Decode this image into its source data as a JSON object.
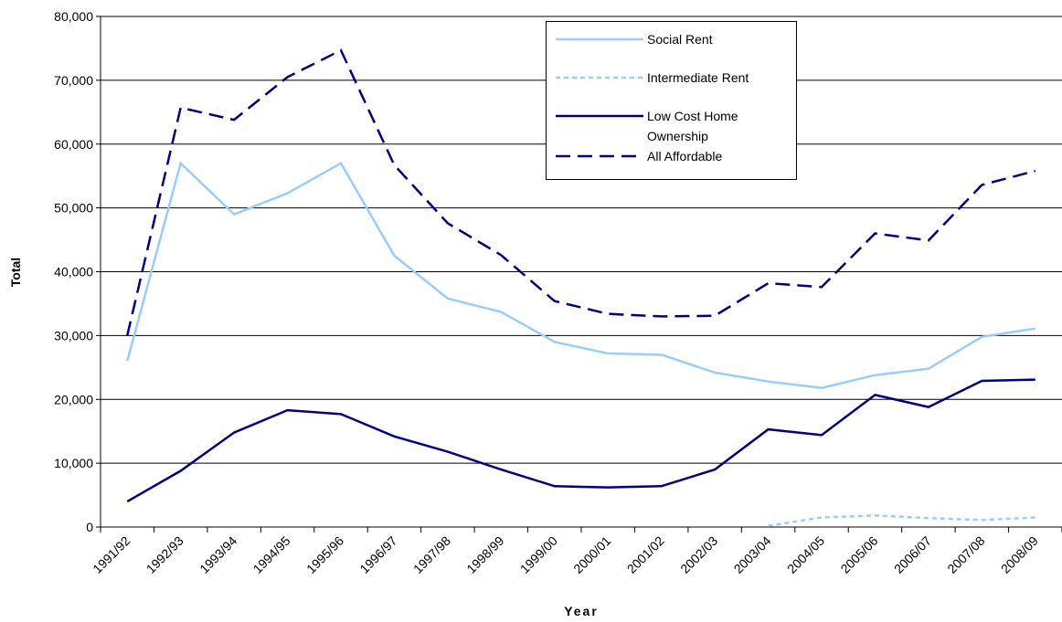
{
  "chart_data": {
    "type": "line",
    "x_label": "Year",
    "y_label": "Total",
    "categories": [
      "1991/92",
      "1992/93",
      "1993/94",
      "1994/95",
      "1995/96",
      "1996/97",
      "1997/98",
      "1998/99",
      "1999/00",
      "2000/01",
      "2001/02",
      "2002/03",
      "2003/04",
      "2004/05",
      "2005/06",
      "2006/07",
      "2007/08",
      "2008/09"
    ],
    "series": [
      {
        "name": "Social Rent",
        "color": "#99ccff",
        "dash": "solid",
        "values": [
          26000,
          57000,
          49000,
          52300,
          57000,
          42500,
          35800,
          33700,
          29000,
          27200,
          27000,
          24200,
          22800,
          21800,
          23800,
          24800,
          29800,
          31100
        ]
      },
      {
        "name": "Intermediate Rent",
        "color": "#99ccff",
        "dash": "dotted",
        "values": [
          null,
          null,
          null,
          null,
          null,
          null,
          null,
          null,
          null,
          null,
          null,
          null,
          200,
          1500,
          1800,
          1400,
          1100,
          1500
        ]
      },
      {
        "name": "Low Cost Home Ownership",
        "color": "#000080",
        "dash": "solid",
        "values": [
          4000,
          8800,
          14800,
          18300,
          17700,
          14200,
          11800,
          9000,
          6400,
          6200,
          6400,
          9000,
          15300,
          14400,
          20700,
          18800,
          22900,
          23100
        ]
      },
      {
        "name": "All Affordable",
        "color": "#000080",
        "dash": "dashed",
        "values": [
          30000,
          65700,
          63800,
          70500,
          74700,
          56700,
          47600,
          42600,
          35400,
          33400,
          33000,
          33100,
          38200,
          37600,
          46000,
          44900,
          53600,
          55800
        ]
      }
    ],
    "ylim": [
      0,
      80000
    ],
    "yticks": [
      0,
      {
        "value": 10000,
        "label": "10,000"
      },
      {
        "value": 20000,
        "label": "20,000"
      },
      {
        "value": 30000,
        "label": "30,000"
      },
      {
        "value": 40000,
        "label": "40,000"
      },
      {
        "value": 50000,
        "label": "50,000"
      },
      {
        "value": 60000,
        "label": "60,000"
      },
      {
        "value": 70000,
        "label": "70,000"
      },
      {
        "value": 80000,
        "label": "80,000"
      }
    ],
    "grid": true,
    "legend": "top-right"
  }
}
